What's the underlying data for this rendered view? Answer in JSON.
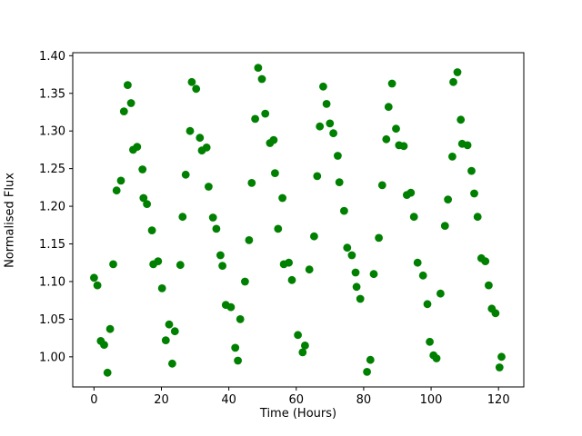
{
  "figure": {
    "background_color": "#ffffff",
    "text_color": "#000000",
    "spine_color": "#000000"
  },
  "chart_data": {
    "type": "scatter",
    "title": "",
    "xlabel": "Time (Hours)",
    "ylabel": "Normalised Flux",
    "xlim": [
      -6.3,
      127.5
    ],
    "ylim": [
      0.96,
      1.404
    ],
    "grid": false,
    "legend": null,
    "marker": {
      "shape": "circle",
      "color": "#008000",
      "radius_px": 4.4
    },
    "x_tick_values": [
      0,
      20,
      40,
      60,
      80,
      100,
      120
    ],
    "x_tick_labels": [
      "0",
      "20",
      "40",
      "60",
      "80",
      "100",
      "120"
    ],
    "y_tick_values": [
      1.0,
      1.05,
      1.1,
      1.15,
      1.2,
      1.25,
      1.3,
      1.35,
      1.4
    ],
    "y_tick_labels": [
      "1.00",
      "1.05",
      "1.10",
      "1.15",
      "1.20",
      "1.25",
      "1.30",
      "1.35",
      "1.40"
    ],
    "points": [
      [
        0.0,
        1.105
      ],
      [
        1.0,
        1.095
      ],
      [
        2.0,
        1.021
      ],
      [
        3.0,
        1.016
      ],
      [
        4.0,
        0.979
      ],
      [
        4.8,
        1.037
      ],
      [
        5.7,
        1.123
      ],
      [
        6.7,
        1.221
      ],
      [
        8.0,
        1.234
      ],
      [
        8.9,
        1.326
      ],
      [
        10.0,
        1.361
      ],
      [
        11.0,
        1.337
      ],
      [
        11.6,
        1.275
      ],
      [
        12.8,
        1.279
      ],
      [
        14.4,
        1.249
      ],
      [
        14.7,
        1.211
      ],
      [
        15.7,
        1.203
      ],
      [
        17.2,
        1.168
      ],
      [
        17.6,
        1.123
      ],
      [
        19.0,
        1.127
      ],
      [
        20.2,
        1.091
      ],
      [
        21.3,
        1.022
      ],
      [
        22.3,
        1.043
      ],
      [
        23.2,
        0.991
      ],
      [
        24.0,
        1.034
      ],
      [
        25.6,
        1.122
      ],
      [
        26.3,
        1.186
      ],
      [
        27.2,
        1.242
      ],
      [
        28.5,
        1.3
      ],
      [
        29.0,
        1.365
      ],
      [
        30.3,
        1.356
      ],
      [
        31.4,
        1.291
      ],
      [
        32.0,
        1.274
      ],
      [
        33.4,
        1.278
      ],
      [
        34.0,
        1.226
      ],
      [
        35.3,
        1.185
      ],
      [
        36.3,
        1.17
      ],
      [
        37.5,
        1.135
      ],
      [
        38.1,
        1.121
      ],
      [
        39.1,
        1.069
      ],
      [
        40.6,
        1.066
      ],
      [
        41.9,
        1.012
      ],
      [
        42.7,
        0.995
      ],
      [
        43.4,
        1.05
      ],
      [
        44.8,
        1.1
      ],
      [
        46.0,
        1.155
      ],
      [
        46.8,
        1.231
      ],
      [
        47.8,
        1.316
      ],
      [
        48.7,
        1.384
      ],
      [
        49.8,
        1.369
      ],
      [
        50.8,
        1.323
      ],
      [
        52.2,
        1.284
      ],
      [
        53.3,
        1.288
      ],
      [
        53.7,
        1.244
      ],
      [
        54.6,
        1.17
      ],
      [
        55.9,
        1.211
      ],
      [
        56.3,
        1.123
      ],
      [
        57.8,
        1.125
      ],
      [
        58.7,
        1.102
      ],
      [
        60.5,
        1.029
      ],
      [
        61.9,
        1.006
      ],
      [
        62.6,
        1.015
      ],
      [
        63.9,
        1.116
      ],
      [
        65.3,
        1.16
      ],
      [
        66.2,
        1.24
      ],
      [
        67.0,
        1.306
      ],
      [
        68.0,
        1.359
      ],
      [
        69.0,
        1.336
      ],
      [
        70.0,
        1.31
      ],
      [
        71.0,
        1.297
      ],
      [
        72.3,
        1.267
      ],
      [
        72.8,
        1.232
      ],
      [
        74.2,
        1.194
      ],
      [
        75.1,
        1.145
      ],
      [
        76.5,
        1.135
      ],
      [
        77.6,
        1.112
      ],
      [
        77.9,
        1.093
      ],
      [
        79.0,
        1.077
      ],
      [
        81.0,
        0.98
      ],
      [
        82.0,
        0.996
      ],
      [
        83.0,
        1.11
      ],
      [
        84.5,
        1.158
      ],
      [
        85.5,
        1.228
      ],
      [
        86.7,
        1.289
      ],
      [
        87.4,
        1.332
      ],
      [
        88.4,
        1.363
      ],
      [
        89.6,
        1.303
      ],
      [
        90.5,
        1.281
      ],
      [
        91.9,
        1.28
      ],
      [
        92.8,
        1.215
      ],
      [
        94.0,
        1.218
      ],
      [
        94.9,
        1.186
      ],
      [
        96.0,
        1.125
      ],
      [
        97.6,
        1.108
      ],
      [
        98.9,
        1.07
      ],
      [
        99.6,
        1.02
      ],
      [
        100.7,
        1.002
      ],
      [
        101.6,
        0.998
      ],
      [
        102.8,
        1.084
      ],
      [
        104.1,
        1.174
      ],
      [
        105.0,
        1.209
      ],
      [
        106.3,
        1.266
      ],
      [
        106.6,
        1.365
      ],
      [
        107.8,
        1.378
      ],
      [
        108.8,
        1.315
      ],
      [
        109.2,
        1.283
      ],
      [
        110.8,
        1.281
      ],
      [
        112.0,
        1.247
      ],
      [
        112.8,
        1.217
      ],
      [
        113.8,
        1.186
      ],
      [
        114.9,
        1.131
      ],
      [
        116.1,
        1.127
      ],
      [
        117.1,
        1.095
      ],
      [
        118.0,
        1.064
      ],
      [
        119.1,
        1.058
      ],
      [
        120.3,
        0.986
      ],
      [
        120.9,
        1.0
      ]
    ]
  }
}
